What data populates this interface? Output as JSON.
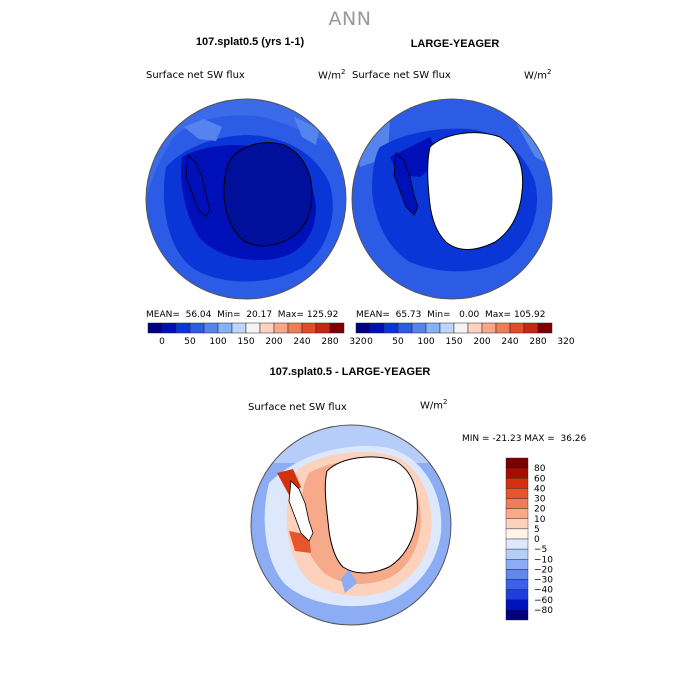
{
  "figure": {
    "title": "ANN",
    "panels": [
      {
        "id": "p1",
        "title": "107.splat0.5 (yrs 1-1)",
        "variable": "Surface net SW flux",
        "units_base": "W/m",
        "units_exp": "2",
        "stats": "MEAN=  56.04  Min=  20.17  Max= 125.92"
      },
      {
        "id": "p2",
        "title": "LARGE-YEAGER",
        "variable": "Surface net SW flux",
        "units_base": "W/m",
        "units_exp": "2",
        "stats": "MEAN=  65.73  Min=   0.00  Max= 105.92"
      },
      {
        "id": "p3",
        "title": "107.splat0.5 - LARGE-YEAGER",
        "variable": "Surface net SW flux",
        "units_base": "W/m",
        "units_exp": "2",
        "stats": "MIN = -21.23 MAX =  36.26"
      }
    ],
    "shared_colorbar": {
      "colors": [
        "#000080",
        "#0010b8",
        "#0a36d8",
        "#2c5ce6",
        "#5584ee",
        "#88b0f6",
        "#bcd6fc",
        "#f4f4f4",
        "#fcd2c0",
        "#f8a888",
        "#f07c58",
        "#e24c28",
        "#c42810",
        "#7e0000"
      ],
      "ticks": [
        "0",
        "50",
        "100",
        "150",
        "200",
        "240",
        "280",
        "320"
      ]
    },
    "diff_colorbar": {
      "colors": [
        "#000080",
        "#0012bc",
        "#1f3fdc",
        "#3b62e6",
        "#6088ee",
        "#8cacf4",
        "#b6cdf9",
        "#dde8fc",
        "#fff3ea",
        "#fcd2bc",
        "#f7aa8a",
        "#f07d58",
        "#e6552e",
        "#d4300e",
        "#a80c00",
        "#7a0000"
      ],
      "ticks": [
        "80",
        "60",
        "40",
        "30",
        "20",
        "10",
        "5",
        "0",
        "−5",
        "−10",
        "−20",
        "−30",
        "−40",
        "−60",
        "−80"
      ]
    }
  }
}
